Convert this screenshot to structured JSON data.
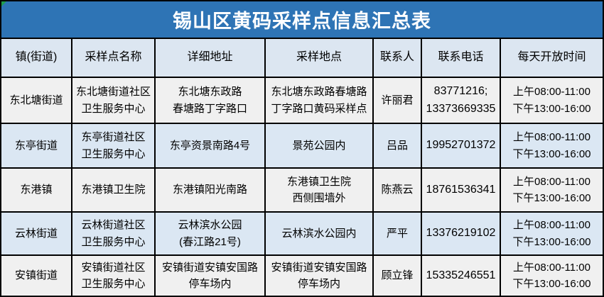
{
  "title": "锡山区黄码采样点信息汇总表",
  "colors": {
    "banner_bg": "#2e74b5",
    "banner_text": "#ffffff",
    "header_row_bg": "#dce6f1",
    "row_bg": "#f0f0f0",
    "row_alt_bg": "#dbe7f3",
    "border": "#000000",
    "corner_marker": "#1f9d4e"
  },
  "columns": [
    "镇(街道)",
    "采样点名称",
    "详细地址",
    "采样地点",
    "联系人",
    "联系电话",
    "每天开放时间"
  ],
  "rows": [
    {
      "town": "东北塘街道",
      "site_name": "东北塘街道社区\n卫生服务中心",
      "address": "东北塘东政路\n春塘路丁字路口",
      "location": "东北塘东政路春塘路\n丁字路口黄码采样点",
      "contact": "许丽君",
      "phone": "83771216;\n13373669335",
      "hours": "上午08:00-11:00\n下午13:00-16:00"
    },
    {
      "town": "东亭街道",
      "site_name": "东亭街道社区\n卫生服务中心",
      "address": "东亭资景南路4号",
      "location": "景苑公园内",
      "contact": "吕品",
      "phone": "19952701372",
      "hours": "上午08:00-11:00\n下午13:00-16:00"
    },
    {
      "town": "东港镇",
      "site_name": "东港镇卫生院",
      "address": "东港镇阳光南路",
      "location": "东港镇卫生院\n西侧围墙外",
      "contact": "陈燕云",
      "phone": "18761536341",
      "hours": "上午08:00-11:00\n下午13:00-16:00"
    },
    {
      "town": "云林街道",
      "site_name": "云林街道社区\n卫生服务中心",
      "address": "云林滨水公园\n(春江路21号)",
      "location": "云林滨水公园内",
      "contact": "严平",
      "phone": "13376219102",
      "hours": "上午08:00-11:00\n下午13:00-16:00"
    },
    {
      "town": "安镇街道",
      "site_name": "安镇街道社区\n卫生服务中心",
      "address": "安镇街道安镇安国路\n停车场内",
      "location": "安镇街道安镇安国路\n停车场内",
      "contact": "顾立锋",
      "phone": "15335246551",
      "hours": "上午08:00-11:00\n下午13:00-16:00"
    }
  ]
}
